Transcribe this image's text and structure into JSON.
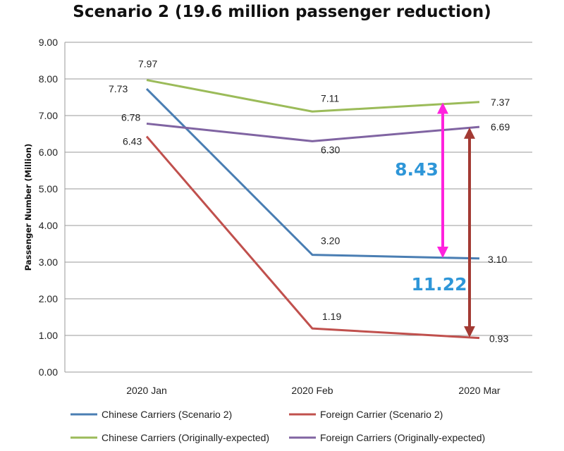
{
  "chart_data": {
    "type": "line",
    "title": "Scenario 2 (19.6 million passenger reduction)",
    "xlabel": "",
    "ylabel": "Passenger Number (Million)",
    "categories": [
      "2020 Jan",
      "2020 Feb",
      "2020 Mar"
    ],
    "ylim": [
      0,
      9
    ],
    "yticks": [
      "0.00",
      "1.00",
      "2.00",
      "3.00",
      "4.00",
      "5.00",
      "6.00",
      "7.00",
      "8.00",
      "9.00"
    ],
    "grid": true,
    "legend_position": "bottom",
    "series": [
      {
        "name": "Chinese Carriers (Scenario 2)",
        "values": [
          7.73,
          3.2,
          3.1
        ],
        "labels": [
          "7.73",
          "3.20",
          "3.10"
        ],
        "color": "#4a7eb3"
      },
      {
        "name": "Foreign Carrier (Scenario 2)",
        "values": [
          6.43,
          1.19,
          0.93
        ],
        "labels": [
          "6.43",
          "1.19",
          "0.93"
        ],
        "color": "#c0504d"
      },
      {
        "name": "Chinese Carriers (Originally-expected)",
        "values": [
          7.97,
          7.11,
          7.37
        ],
        "labels": [
          "7.97",
          "7.11",
          "7.37"
        ],
        "color": "#9bbb59"
      },
      {
        "name": "Foreign Carriers (Originally-expected)",
        "values": [
          6.78,
          6.3,
          6.69
        ],
        "labels": [
          "6.78",
          "6.30",
          "6.69"
        ],
        "color": "#8064a2"
      }
    ],
    "annotations": [
      {
        "label": "8.43",
        "from": 3.1,
        "to": 7.37,
        "arrow_color": "#ff22dd",
        "text_color": "#2e96d8"
      },
      {
        "label": "11.22",
        "from": 0.93,
        "to": 6.69,
        "arrow_color": "#a33a33",
        "text_color": "#2e96d8"
      }
    ]
  }
}
